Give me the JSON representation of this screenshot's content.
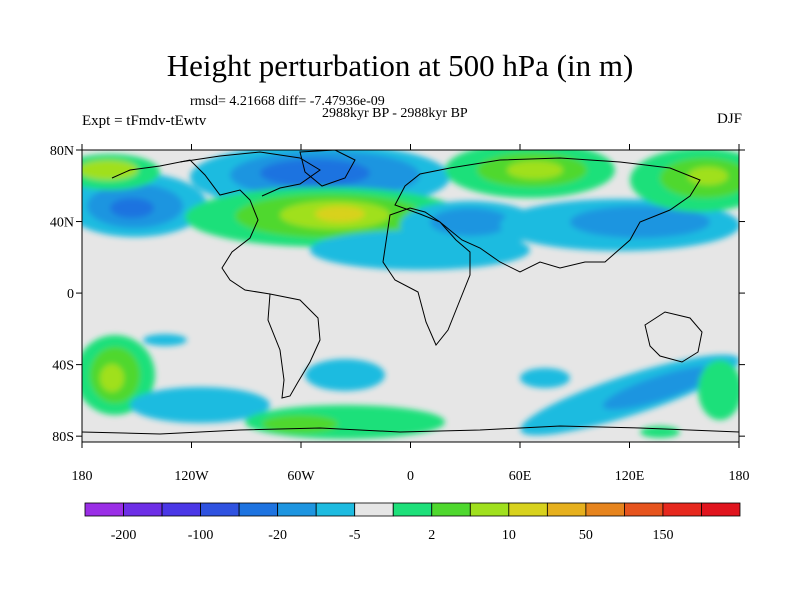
{
  "header": {
    "title": "Height perturbation at 500 hPa (in m)",
    "rmsd": "rmsd= 4.21668  diff= -7.47936e-09",
    "period": "2988kyr BP - 2988kyr BP",
    "experiment": "Expt = tFmdv-tEwtv",
    "season": "DJF"
  },
  "map": {
    "x_ticks": [
      "180",
      "120W",
      "60W",
      "0",
      "60E",
      "120E",
      "180"
    ],
    "y_ticks": [
      "80N",
      "40N",
      "0",
      "40S",
      "80S"
    ],
    "background_color": "#e6e6e6"
  },
  "colorbar": {
    "colors": [
      "#9a2ee6",
      "#6d2ee6",
      "#4a37e6",
      "#2f52e0",
      "#1e73e0",
      "#1e95e0",
      "#1ebbe0",
      "#e6e6e6",
      "#1ee07a",
      "#4fd82e",
      "#a0e01e",
      "#d8d21e",
      "#e6b01e",
      "#e6841e",
      "#e6541e",
      "#e6281e",
      "#e0141e"
    ],
    "labels": [
      "-200",
      "-100",
      "-20",
      "-5",
      "2",
      "10",
      "50",
      "150"
    ]
  }
}
